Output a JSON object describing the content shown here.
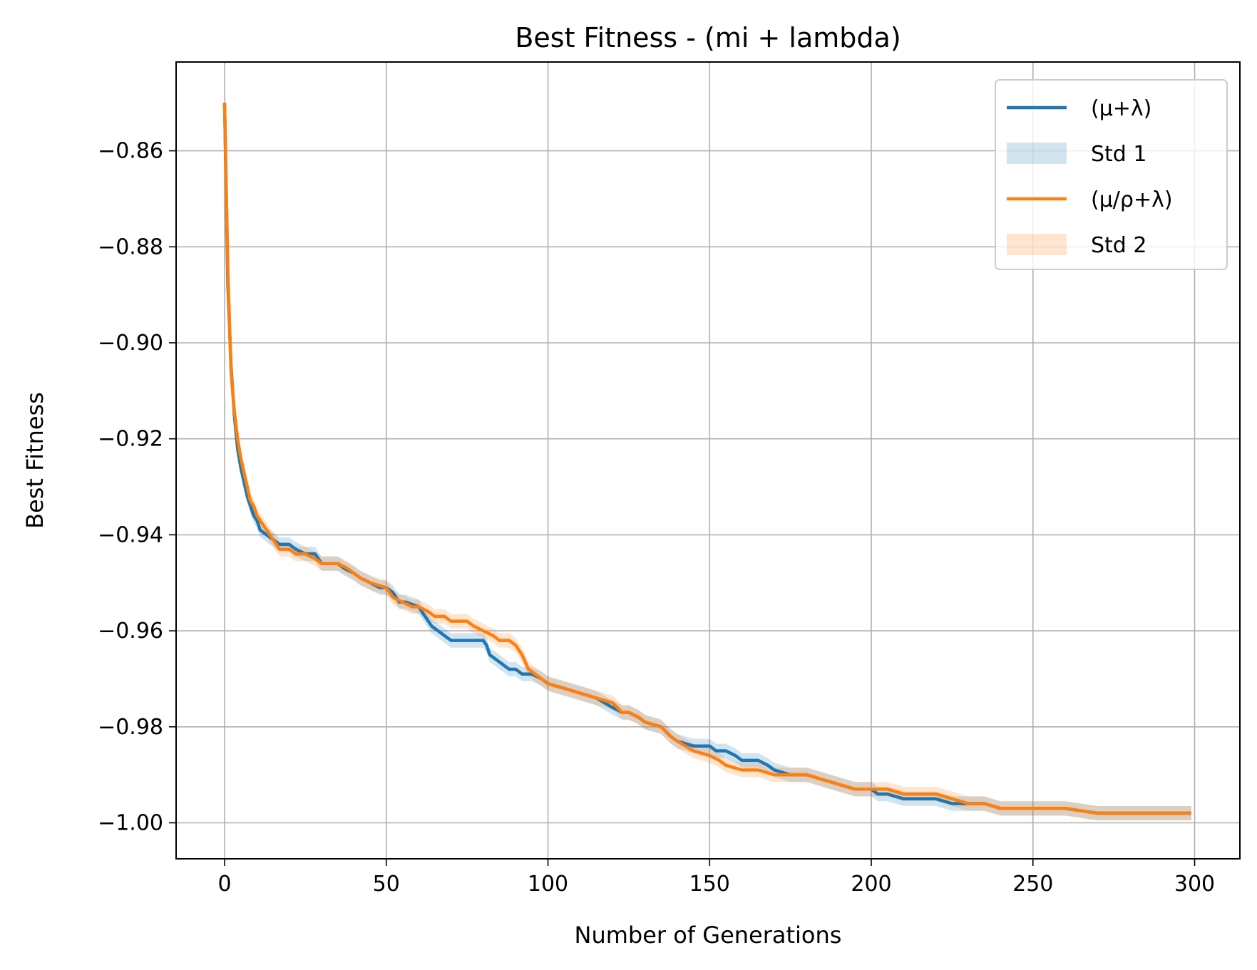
{
  "chart_data": {
    "type": "line",
    "title": "Best Fitness - (mi + lambda)",
    "xlabel": "Number of Generations",
    "ylabel": "Best Fitness",
    "xlim": [
      -15,
      314
    ],
    "ylim": [
      -1.0075,
      -0.8415
    ],
    "xticks": [
      0,
      50,
      100,
      150,
      200,
      250,
      300
    ],
    "xtick_labels": [
      "0",
      "50",
      "100",
      "150",
      "200",
      "250",
      "300"
    ],
    "yticks": [
      -0.86,
      -0.88,
      -0.9,
      -0.92,
      -0.94,
      -0.96,
      -0.98,
      -1.0
    ],
    "ytick_labels": [
      "−0.86",
      "−0.88",
      "−0.90",
      "−0.92",
      "−0.94",
      "−0.96",
      "−0.98",
      "−1.00"
    ],
    "grid": true,
    "legend_position": "top-right",
    "legend": [
      {
        "label": "(μ+λ)",
        "kind": "line",
        "color": "#1f77b4"
      },
      {
        "label": "Std 1",
        "kind": "band",
        "color": "#1f77b4"
      },
      {
        "label": "(μ/ρ+λ)",
        "kind": "line",
        "color": "#ff7f0e"
      },
      {
        "label": "Std 2",
        "kind": "band",
        "color": "#ff7f0e"
      }
    ],
    "series": [
      {
        "name": "(μ+λ)",
        "color": "#1f77b4",
        "std": 0.0015,
        "points": [
          [
            0,
            -0.85
          ],
          [
            1,
            -0.888
          ],
          [
            2,
            -0.905
          ],
          [
            3,
            -0.915
          ],
          [
            4,
            -0.922
          ],
          [
            5,
            -0.926
          ],
          [
            6,
            -0.929
          ],
          [
            7,
            -0.932
          ],
          [
            8,
            -0.934
          ],
          [
            9,
            -0.936
          ],
          [
            10,
            -0.937
          ],
          [
            11,
            -0.939
          ],
          [
            13,
            -0.94
          ],
          [
            15,
            -0.941
          ],
          [
            17,
            -0.942
          ],
          [
            20,
            -0.942
          ],
          [
            22,
            -0.943
          ],
          [
            25,
            -0.944
          ],
          [
            28,
            -0.944
          ],
          [
            30,
            -0.946
          ],
          [
            35,
            -0.946
          ],
          [
            37,
            -0.947
          ],
          [
            40,
            -0.948
          ],
          [
            42,
            -0.949
          ],
          [
            45,
            -0.95
          ],
          [
            48,
            -0.951
          ],
          [
            50,
            -0.951
          ],
          [
            52,
            -0.952
          ],
          [
            54,
            -0.954
          ],
          [
            56,
            -0.954
          ],
          [
            60,
            -0.955
          ],
          [
            62,
            -0.957
          ],
          [
            64,
            -0.959
          ],
          [
            66,
            -0.96
          ],
          [
            68,
            -0.961
          ],
          [
            70,
            -0.962
          ],
          [
            75,
            -0.962
          ],
          [
            80,
            -0.962
          ],
          [
            81,
            -0.963
          ],
          [
            82,
            -0.965
          ],
          [
            84,
            -0.966
          ],
          [
            86,
            -0.967
          ],
          [
            88,
            -0.968
          ],
          [
            90,
            -0.968
          ],
          [
            92,
            -0.969
          ],
          [
            95,
            -0.969
          ],
          [
            98,
            -0.97
          ],
          [
            100,
            -0.971
          ],
          [
            105,
            -0.972
          ],
          [
            110,
            -0.973
          ],
          [
            115,
            -0.974
          ],
          [
            120,
            -0.976
          ],
          [
            123,
            -0.977
          ],
          [
            125,
            -0.977
          ],
          [
            128,
            -0.978
          ],
          [
            130,
            -0.979
          ],
          [
            135,
            -0.98
          ],
          [
            138,
            -0.982
          ],
          [
            140,
            -0.983
          ],
          [
            145,
            -0.984
          ],
          [
            150,
            -0.984
          ],
          [
            152,
            -0.985
          ],
          [
            155,
            -0.985
          ],
          [
            158,
            -0.986
          ],
          [
            160,
            -0.987
          ],
          [
            165,
            -0.987
          ],
          [
            168,
            -0.988
          ],
          [
            170,
            -0.989
          ],
          [
            175,
            -0.99
          ],
          [
            180,
            -0.99
          ],
          [
            185,
            -0.991
          ],
          [
            190,
            -0.992
          ],
          [
            195,
            -0.993
          ],
          [
            200,
            -0.993
          ],
          [
            202,
            -0.994
          ],
          [
            205,
            -0.994
          ],
          [
            210,
            -0.995
          ],
          [
            215,
            -0.995
          ],
          [
            220,
            -0.995
          ],
          [
            225,
            -0.996
          ],
          [
            230,
            -0.996
          ],
          [
            235,
            -0.996
          ],
          [
            240,
            -0.997
          ],
          [
            245,
            -0.997
          ],
          [
            250,
            -0.997
          ],
          [
            260,
            -0.997
          ],
          [
            270,
            -0.998
          ],
          [
            280,
            -0.998
          ],
          [
            290,
            -0.998
          ],
          [
            299,
            -0.998
          ]
        ]
      },
      {
        "name": "(μ/ρ+λ)",
        "color": "#ff7f0e",
        "std": 0.0015,
        "points": [
          [
            0,
            -0.85
          ],
          [
            1,
            -0.885
          ],
          [
            2,
            -0.906
          ],
          [
            3,
            -0.914
          ],
          [
            4,
            -0.92
          ],
          [
            5,
            -0.924
          ],
          [
            6,
            -0.927
          ],
          [
            7,
            -0.93
          ],
          [
            8,
            -0.933
          ],
          [
            9,
            -0.934
          ],
          [
            10,
            -0.936
          ],
          [
            11,
            -0.937
          ],
          [
            13,
            -0.939
          ],
          [
            15,
            -0.941
          ],
          [
            17,
            -0.943
          ],
          [
            20,
            -0.943
          ],
          [
            22,
            -0.944
          ],
          [
            25,
            -0.944
          ],
          [
            28,
            -0.945
          ],
          [
            30,
            -0.946
          ],
          [
            35,
            -0.946
          ],
          [
            38,
            -0.947
          ],
          [
            40,
            -0.948
          ],
          [
            42,
            -0.949
          ],
          [
            45,
            -0.95
          ],
          [
            50,
            -0.951
          ],
          [
            52,
            -0.953
          ],
          [
            55,
            -0.954
          ],
          [
            58,
            -0.955
          ],
          [
            60,
            -0.955
          ],
          [
            63,
            -0.956
          ],
          [
            65,
            -0.957
          ],
          [
            68,
            -0.957
          ],
          [
            70,
            -0.958
          ],
          [
            75,
            -0.958
          ],
          [
            77,
            -0.959
          ],
          [
            80,
            -0.96
          ],
          [
            83,
            -0.961
          ],
          [
            85,
            -0.962
          ],
          [
            88,
            -0.962
          ],
          [
            90,
            -0.963
          ],
          [
            92,
            -0.965
          ],
          [
            94,
            -0.968
          ],
          [
            96,
            -0.969
          ],
          [
            98,
            -0.97
          ],
          [
            100,
            -0.971
          ],
          [
            105,
            -0.972
          ],
          [
            110,
            -0.973
          ],
          [
            115,
            -0.974
          ],
          [
            120,
            -0.975
          ],
          [
            123,
            -0.977
          ],
          [
            125,
            -0.977
          ],
          [
            128,
            -0.978
          ],
          [
            130,
            -0.979
          ],
          [
            135,
            -0.98
          ],
          [
            138,
            -0.982
          ],
          [
            140,
            -0.983
          ],
          [
            145,
            -0.985
          ],
          [
            150,
            -0.986
          ],
          [
            153,
            -0.987
          ],
          [
            155,
            -0.988
          ],
          [
            160,
            -0.989
          ],
          [
            165,
            -0.989
          ],
          [
            170,
            -0.99
          ],
          [
            175,
            -0.99
          ],
          [
            180,
            -0.99
          ],
          [
            185,
            -0.991
          ],
          [
            190,
            -0.992
          ],
          [
            195,
            -0.993
          ],
          [
            200,
            -0.993
          ],
          [
            205,
            -0.993
          ],
          [
            210,
            -0.994
          ],
          [
            215,
            -0.994
          ],
          [
            220,
            -0.994
          ],
          [
            225,
            -0.995
          ],
          [
            230,
            -0.996
          ],
          [
            235,
            -0.996
          ],
          [
            240,
            -0.997
          ],
          [
            245,
            -0.997
          ],
          [
            250,
            -0.997
          ],
          [
            260,
            -0.997
          ],
          [
            270,
            -0.998
          ],
          [
            280,
            -0.998
          ],
          [
            290,
            -0.998
          ],
          [
            299,
            -0.998
          ]
        ]
      }
    ]
  }
}
